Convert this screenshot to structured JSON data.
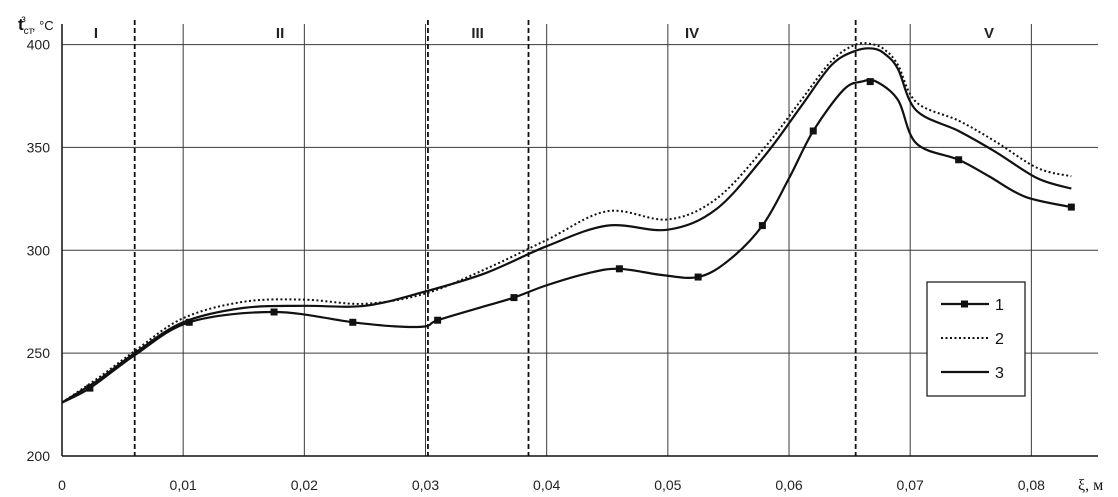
{
  "chart_data": {
    "type": "line",
    "ylabel": {
      "main": "t",
      "sub": "ст",
      "sup": "з",
      "unit": ", °С"
    },
    "xlabel": "ξ, м",
    "xlim": [
      0,
      0.085
    ],
    "ylim": [
      200,
      410
    ],
    "x_ticks": [
      0,
      0.01,
      0.02,
      0.03,
      0.04,
      0.05,
      0.06,
      0.07,
      0.08
    ],
    "x_tick_labels": [
      "0",
      "0,01",
      "0,02",
      "0,03",
      "0,04",
      "0,05",
      "0,06",
      "0,07",
      "0,08"
    ],
    "y_ticks": [
      200,
      250,
      300,
      350,
      400
    ],
    "y_tick_labels": [
      "200",
      "250",
      "300",
      "350",
      "400"
    ],
    "grid": {
      "horizontal": true,
      "vertical": true
    },
    "zone_boundaries": [
      0.006,
      0.0302,
      0.0385,
      0.0655
    ],
    "zones": [
      {
        "label": "I",
        "x": 0.0028
      },
      {
        "label": "II",
        "x": 0.018
      },
      {
        "label": "III",
        "x": 0.0343
      },
      {
        "label": "IV",
        "x": 0.052
      },
      {
        "label": "V",
        "x": 0.0765
      }
    ],
    "legend_position": "right",
    "series": [
      {
        "name": "1",
        "style": "solid-marker",
        "x": [
          0,
          0.0023,
          0.006,
          0.0105,
          0.0175,
          0.024,
          0.0275,
          0.03,
          0.031,
          0.035,
          0.0373,
          0.04,
          0.0435,
          0.046,
          0.0495,
          0.0525,
          0.055,
          0.0578,
          0.06,
          0.062,
          0.0645,
          0.066,
          0.0672,
          0.069,
          0.0705,
          0.074,
          0.0765,
          0.0795,
          0.0833
        ],
        "y": [
          226,
          233,
          249,
          265,
          270,
          265,
          263,
          263,
          266,
          273,
          277,
          283,
          289,
          291,
          288,
          287,
          295,
          312,
          335,
          358,
          378,
          382,
          382,
          373,
          352,
          344,
          336,
          326,
          321
        ],
        "markers": [
          0.0023,
          0.0105,
          0.0175,
          0.024,
          0.031,
          0.0373,
          0.046,
          0.0525,
          0.0578,
          0.062,
          0.0667,
          0.074,
          0.0833
        ]
      },
      {
        "name": "2",
        "style": "dotted",
        "x": [
          0,
          0.003,
          0.006,
          0.01,
          0.015,
          0.02,
          0.025,
          0.03,
          0.035,
          0.04,
          0.045,
          0.05,
          0.054,
          0.058,
          0.061,
          0.0635,
          0.0655,
          0.067,
          0.068,
          0.069,
          0.0705,
          0.074,
          0.077,
          0.0805,
          0.0833
        ],
        "y": [
          226,
          238,
          251,
          267,
          275,
          276,
          274,
          279,
          291,
          305,
          319,
          315,
          325,
          350,
          373,
          392,
          400,
          400,
          397,
          390,
          372,
          363,
          353,
          340,
          336
        ]
      },
      {
        "name": "3",
        "style": "solid",
        "x": [
          0,
          0.003,
          0.006,
          0.01,
          0.015,
          0.02,
          0.025,
          0.03,
          0.035,
          0.04,
          0.045,
          0.05,
          0.054,
          0.058,
          0.061,
          0.0635,
          0.0655,
          0.067,
          0.068,
          0.069,
          0.0705,
          0.074,
          0.077,
          0.0805,
          0.0833
        ],
        "y": [
          226,
          237,
          250,
          265,
          272,
          273,
          273,
          280,
          289,
          302,
          312,
          310,
          320,
          346,
          370,
          390,
          397,
          398,
          395,
          388,
          368,
          358,
          348,
          335,
          330
        ]
      }
    ]
  }
}
